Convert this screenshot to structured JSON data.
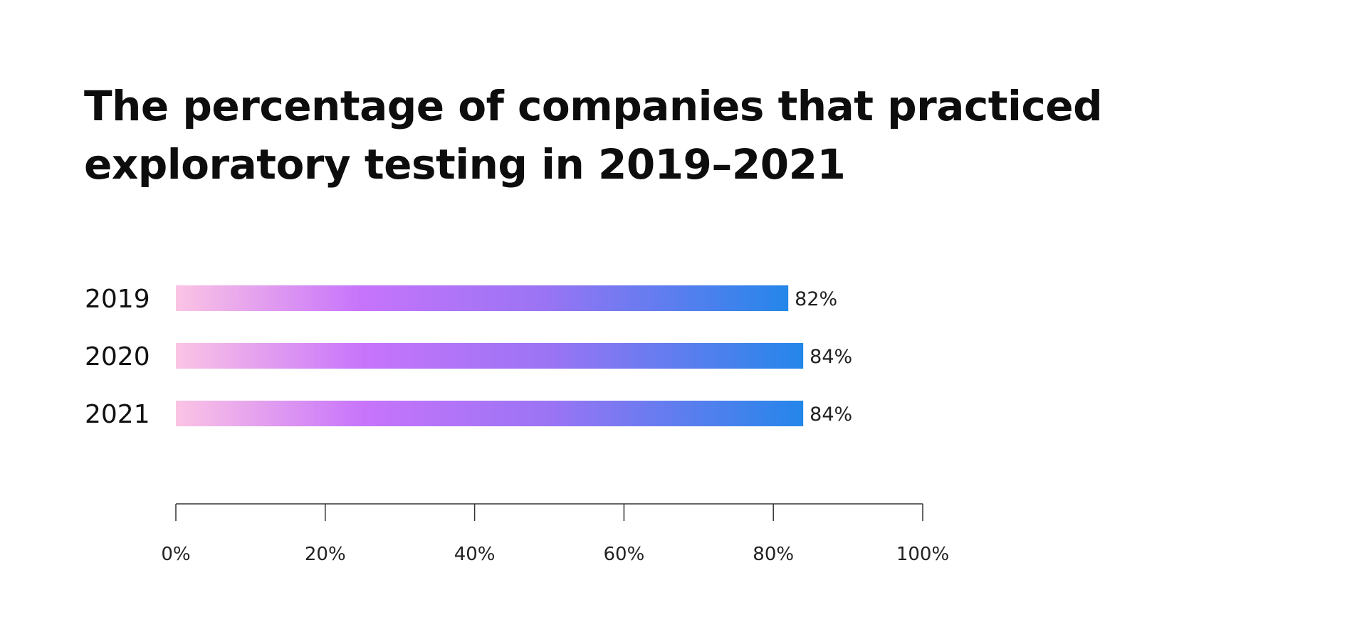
{
  "chart_data": {
    "type": "bar",
    "orientation": "horizontal",
    "title": "The percentage of companies that practiced exploratory testing in 2019–2021",
    "categories": [
      "2019",
      "2020",
      "2021"
    ],
    "values": [
      82,
      84,
      84
    ],
    "value_labels": [
      "82%",
      "84%",
      "84%"
    ],
    "xlim": [
      0,
      100
    ],
    "x_ticks": [
      0,
      20,
      40,
      60,
      80,
      100
    ],
    "x_tick_labels": [
      "0%",
      "20%",
      "40%",
      "60%",
      "80%",
      "100%"
    ],
    "grid": false,
    "legend": "none",
    "bar_gradient": [
      "#fbc4e4",
      "#c774fb",
      "#9a74f4",
      "#2486ea"
    ]
  }
}
